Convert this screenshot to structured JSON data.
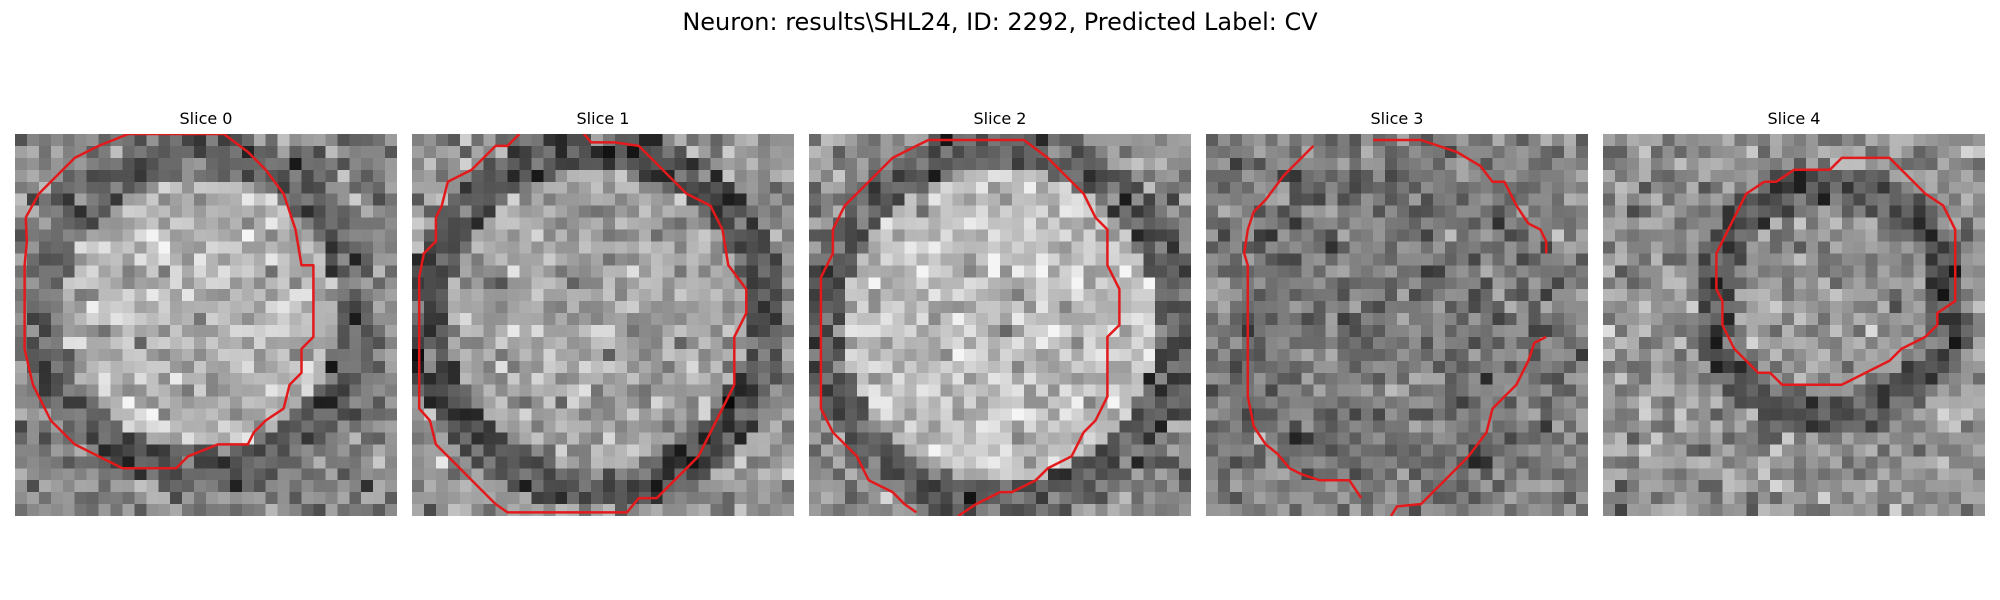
{
  "figure": {
    "title": "Neuron: results\\SHL24, ID: 2292, Predicted Label: CV",
    "contour_color": "#e31a1c"
  },
  "panels": [
    {
      "title": "Slice 0"
    },
    {
      "title": "Slice 1"
    },
    {
      "title": "Slice 2"
    },
    {
      "title": "Slice 3"
    },
    {
      "title": "Slice 4"
    }
  ]
}
